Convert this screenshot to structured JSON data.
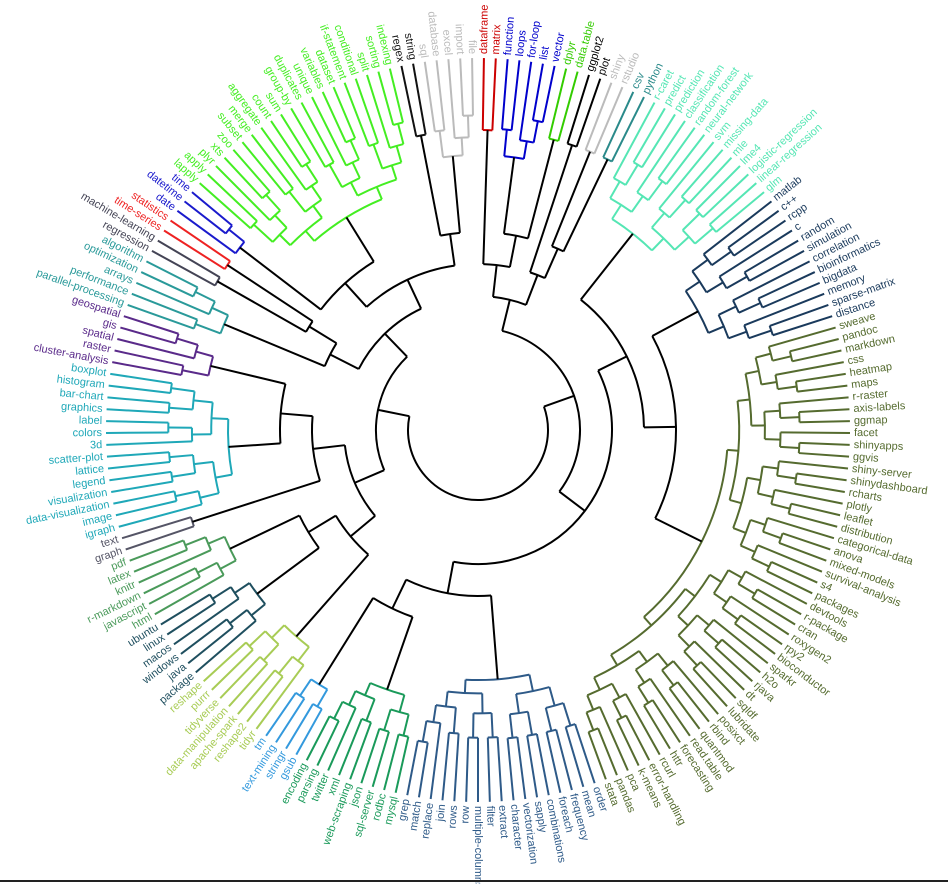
{
  "chart_data": {
    "type": "circular-dendrogram",
    "title": "",
    "leaves": [
      "dataframe",
      "matrix",
      "function",
      "loops",
      "for-loop",
      "list",
      "vector",
      "dplyr",
      "data.table",
      "ggplot2",
      "plot",
      "shiny",
      "rstudio",
      "csv",
      "python",
      "r-caret",
      "predict",
      "prediction",
      "classification",
      "random-forest",
      "neural-network",
      "svm",
      "missing-data",
      "mle",
      "lme4",
      "logistic-regression",
      "linear-regression",
      "glm",
      "matlab",
      "c++",
      "rcpp",
      "c",
      "random",
      "simulation",
      "correlation",
      "bioinformatics",
      "bigdata",
      "memory",
      "sparse-matrix",
      "distance",
      "sweave",
      "pandoc",
      "markdown",
      "css",
      "heatmap",
      "maps",
      "r-raster",
      "axis-labels",
      "ggmap",
      "facet",
      "shinyapps",
      "ggvis",
      "shiny-server",
      "shinydashboard",
      "rcharts",
      "plotly",
      "leaflet",
      "distribution",
      "categorical-data",
      "anova",
      "mixed-models",
      "survival-analysis",
      "s4",
      "packages",
      "devtools",
      "r-package",
      "cran",
      "roxygen2",
      "rpy2",
      "bioconductor",
      "sparkr",
      "h2o",
      "rjava",
      "dt",
      "sqldf",
      "lubridate",
      "posixct",
      "rbind",
      "quantmod",
      "read.table",
      "forecasting",
      "httr",
      "rcurl",
      "error-handling",
      "k-means",
      "pca",
      "pandas",
      "stata",
      "order",
      "mean",
      "frequency",
      "foreach",
      "combinations",
      "sapply",
      "vectorization",
      "character",
      "extract",
      "filter",
      "multiple-columns",
      "row",
      "rows",
      "join",
      "replace",
      "match",
      "grep",
      "mysql",
      "rodbc",
      "sql-server",
      "json",
      "web-scraping",
      "xml",
      "twitter",
      "parsing",
      "encoding",
      "gsub",
      "stringr",
      "text-mining",
      "tm",
      "tidyr",
      "reshape2",
      "apache-spark",
      "data-manipulation",
      "tidyverse",
      "purrr",
      "reshape",
      "package",
      "java",
      "windows",
      "macos",
      "linux",
      "ubuntu",
      "html",
      "javascript",
      "r-markdown",
      "knitr",
      "latex",
      "pdf",
      "graph",
      "text",
      "igraph",
      "image",
      "data-visualization",
      "visualization",
      "legend",
      "lattice",
      "scatter-plot",
      "3d",
      "colors",
      "label",
      "graphics",
      "bar-chart",
      "histogram",
      "boxplot",
      "cluster-analysis",
      "raster",
      "spatial",
      "gis",
      "geospatial",
      "parallel-processing",
      "performance",
      "arrays",
      "optimization",
      "algorithm",
      "regression",
      "machine-learning",
      "time-series",
      "statistics",
      "date",
      "datetime",
      "time",
      "lapply",
      "apply",
      "plyr",
      "xts",
      "zoo",
      "subset",
      "merge",
      "aggregate",
      "count",
      "sum",
      "group-by",
      "duplicates",
      "unique",
      "variables",
      "dataset",
      "if-statement",
      "conditional",
      "split",
      "sorting",
      "indexing",
      "regex",
      "string",
      "sql",
      "database",
      "excel",
      "import",
      "file"
    ],
    "groups": [
      {
        "color": "#cc0000",
        "leaves": [
          "dataframe",
          "matrix"
        ]
      },
      {
        "color": "#0000cc",
        "leaves": [
          "function",
          "loops",
          "for-loop",
          "list",
          "vector"
        ]
      },
      {
        "color": "#33cc00",
        "leaves": [
          "dplyr",
          "data.table"
        ]
      },
      {
        "color": "#000000",
        "leaves": [
          "ggplot2",
          "plot"
        ]
      },
      {
        "color": "#bbbbbb",
        "leaves": [
          "shiny",
          "rstudio"
        ]
      },
      {
        "color": "#2a8a8a",
        "leaves": [
          "csv",
          "python"
        ]
      },
      {
        "color": "#55e6b4",
        "leaves": [
          "r-caret",
          "predict",
          "prediction",
          "classification",
          "random-forest",
          "neural-network",
          "svm",
          "missing-data",
          "mle",
          "lme4",
          "logistic-regression",
          "linear-regression",
          "glm"
        ]
      },
      {
        "color": "#1a3a5c",
        "leaves": [
          "matlab",
          "c++",
          "rcpp",
          "c",
          "random",
          "simulation",
          "correlation",
          "bioinformatics",
          "bigdata",
          "memory",
          "sparse-matrix",
          "distance"
        ]
      },
      {
        "color": "#556b2f",
        "leaves": [
          "sweave",
          "pandoc",
          "markdown",
          "css",
          "heatmap",
          "maps",
          "r-raster",
          "axis-labels",
          "ggmap",
          "facet",
          "shinyapps",
          "ggvis",
          "shiny-server",
          "shinydashboard",
          "rcharts",
          "plotly",
          "leaflet",
          "distribution",
          "categorical-data",
          "anova",
          "mixed-models",
          "survival-analysis",
          "s4",
          "packages",
          "devtools",
          "r-package",
          "cran",
          "roxygen2",
          "rpy2",
          "bioconductor",
          "sparkr",
          "h2o",
          "rjava",
          "dt",
          "sqldf",
          "lubridate",
          "posixct",
          "rbind",
          "quantmod",
          "read.table",
          "forecasting",
          "httr",
          "rcurl",
          "error-handling",
          "k-means",
          "pca",
          "pandas",
          "stata"
        ]
      },
      {
        "color": "#2e5a88",
        "leaves": [
          "order",
          "mean",
          "frequency",
          "foreach",
          "combinations",
          "sapply",
          "vectorization",
          "character",
          "extract",
          "filter",
          "multiple-columns",
          "row",
          "rows",
          "join",
          "replace",
          "match",
          "grep"
        ]
      },
      {
        "color": "#1a9a5a",
        "leaves": [
          "mysql",
          "rodbc",
          "sql-server",
          "json",
          "web-scraping",
          "xml",
          "twitter",
          "parsing",
          "encoding"
        ]
      },
      {
        "color": "#3399dd",
        "leaves": [
          "gsub",
          "stringr",
          "text-mining",
          "tm"
        ]
      },
      {
        "color": "#a8cc55",
        "leaves": [
          "tidyr",
          "reshape2",
          "apache-spark",
          "data-manipulation",
          "tidyverse",
          "purrr",
          "reshape"
        ]
      },
      {
        "color": "#1f4f5f",
        "leaves": [
          "package",
          "java",
          "windows",
          "macos",
          "linux",
          "ubuntu"
        ]
      },
      {
        "color": "#4a9a5a",
        "leaves": [
          "html",
          "javascript",
          "r-markdown",
          "knitr",
          "latex",
          "pdf"
        ]
      },
      {
        "color": "#555566",
        "leaves": [
          "graph",
          "text"
        ]
      },
      {
        "color": "#1fa8b8",
        "leaves": [
          "igraph",
          "image",
          "data-visualization",
          "visualization",
          "legend",
          "lattice",
          "scatter-plot",
          "3d",
          "colors",
          "label",
          "graphics",
          "bar-chart",
          "histogram",
          "boxplot"
        ]
      },
      {
        "color": "#5a2a8a",
        "leaves": [
          "cluster-analysis",
          "raster",
          "spatial",
          "gis",
          "geospatial"
        ]
      },
      {
        "color": "#2a9a9a",
        "leaves": [
          "parallel-processing",
          "performance",
          "arrays",
          "optimization",
          "algorithm"
        ]
      },
      {
        "color": "#444455",
        "leaves": [
          "regression",
          "machine-learning"
        ]
      },
      {
        "color": "#ee2222",
        "leaves": [
          "time-series",
          "statistics"
        ]
      },
      {
        "color": "#1a1acc",
        "leaves": [
          "date",
          "datetime",
          "time"
        ]
      },
      {
        "color": "#44ee22",
        "leaves": [
          "lapply",
          "apply",
          "plyr",
          "xts",
          "zoo",
          "subset",
          "merge",
          "aggregate",
          "count",
          "sum",
          "group-by",
          "duplicates",
          "unique",
          "variables",
          "dataset",
          "if-statement",
          "conditional",
          "split",
          "sorting",
          "indexing"
        ]
      },
      {
        "color": "#111111",
        "leaves": [
          "regex",
          "string"
        ]
      },
      {
        "color": "#bbbbbb",
        "leaves": [
          "sql",
          "database",
          "excel",
          "import",
          "file"
        ]
      }
    ]
  }
}
